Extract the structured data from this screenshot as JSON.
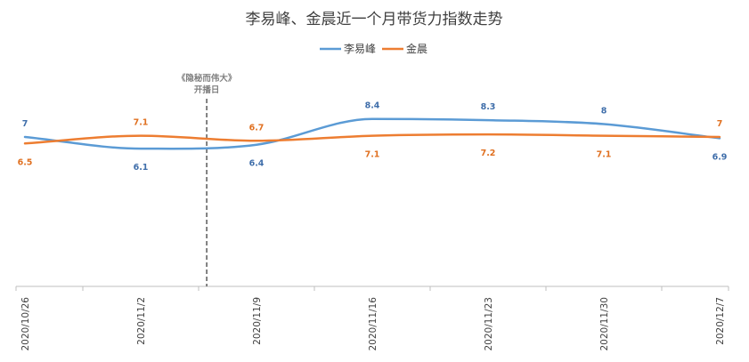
{
  "chart_data": {
    "type": "line",
    "title": "李易峰、金晨近一个月带货力指数走势",
    "xlabel": "",
    "ylabel": "",
    "categories": [
      "2020/10/26",
      "2020/11/2",
      "2020/11/9",
      "2020/11/16",
      "2020/11/23",
      "2020/11/30",
      "2020/12/7"
    ],
    "series": [
      {
        "name": "李易峰",
        "color": "#5b9bd5",
        "label_color": "#3f6eaa",
        "values": [
          7,
          6.1,
          6.4,
          8.4,
          8.3,
          8,
          6.9
        ]
      },
      {
        "name": "金晨",
        "color": "#ed7d31",
        "label_color": "#e07020",
        "values": [
          6.5,
          7.1,
          6.7,
          7.1,
          7.2,
          7.1,
          7
        ]
      }
    ],
    "ylim": [
      0,
      10
    ],
    "grid": false,
    "legend": "top-center",
    "annotation": {
      "line1": "《隐秘而伟大》",
      "line2": "开播日",
      "position": 1.57,
      "style": "dashed"
    }
  }
}
